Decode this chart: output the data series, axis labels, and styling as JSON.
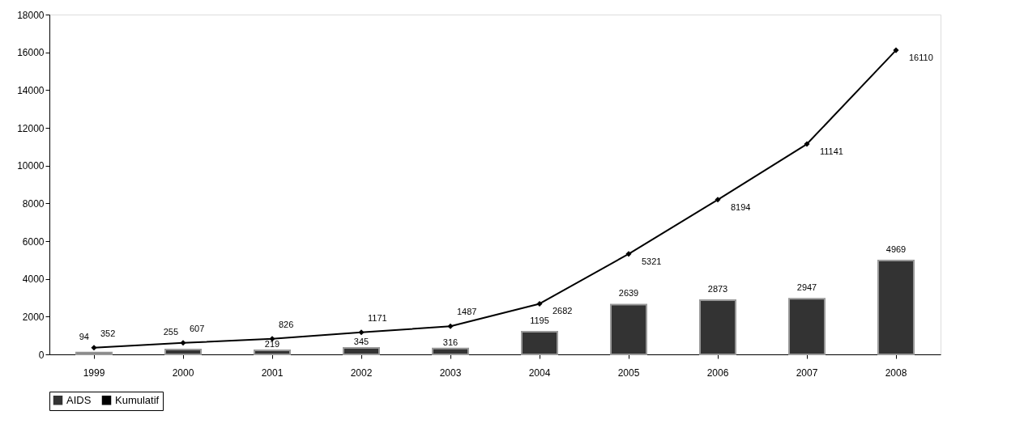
{
  "chart_data": {
    "type": "bar",
    "categories": [
      "1999",
      "2000",
      "2001",
      "2002",
      "2003",
      "2004",
      "2005",
      "2006",
      "2007",
      "2008"
    ],
    "series": [
      {
        "name": "AIDS",
        "type": "bar",
        "color": "#333333",
        "values": [
          94,
          255,
          219,
          345,
          316,
          1195,
          2639,
          2873,
          2947,
          4969
        ]
      },
      {
        "name": "Kumulatif",
        "type": "line",
        "color": "#000000",
        "marker": "diamond",
        "values": [
          352,
          607,
          826,
          1171,
          1487,
          2682,
          5321,
          8194,
          11141,
          16110
        ]
      }
    ],
    "ylim": [
      0,
      18000
    ],
    "yticks": [
      0,
      2000,
      4000,
      6000,
      8000,
      10000,
      12000,
      14000,
      16000,
      18000
    ],
    "data_labels": true,
    "grid": false,
    "legend": "bottom"
  }
}
